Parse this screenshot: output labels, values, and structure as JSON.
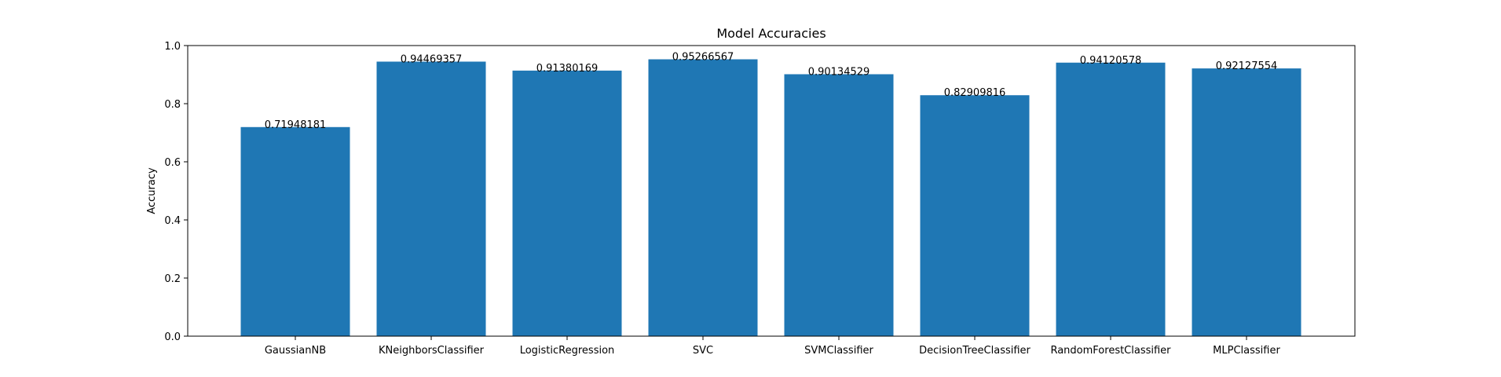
{
  "chart_data": {
    "type": "bar",
    "title": "Model Accuracies",
    "xlabel": "",
    "ylabel": "Accuracy",
    "ylim": [
      0,
      1.0
    ],
    "yticks": [
      "0.0",
      "0.2",
      "0.4",
      "0.6",
      "0.8",
      "1.0"
    ],
    "grid": false,
    "bar_color": "#1f77b4",
    "categories": [
      "GaussianNB",
      "KNeighborsClassifier",
      "LogisticRegression",
      "SVC",
      "SVMClassifier",
      "DecisionTreeClassifier",
      "RandomForestClassifier",
      "MLPClassifier"
    ],
    "values": [
      0.71948181,
      0.94469357,
      0.91380169,
      0.95266567,
      0.90134529,
      0.82909816,
      0.94120578,
      0.92127554
    ],
    "data_labels": [
      "0.71948181",
      "0.94469357",
      "0.91380169",
      "0.95266567",
      "0.90134529",
      "0.82909816",
      "0.94120578",
      "0.92127554"
    ]
  }
}
